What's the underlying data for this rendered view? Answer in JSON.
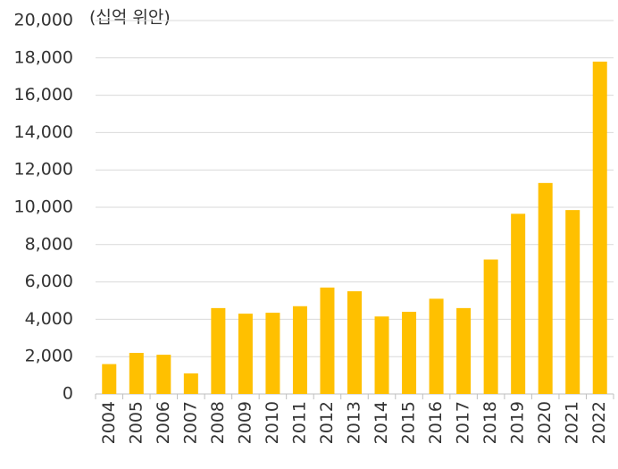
{
  "chart_data": {
    "type": "bar",
    "unit_label": "(십억 위안)",
    "categories": [
      "2004",
      "2005",
      "2006",
      "2007",
      "2008",
      "2009",
      "2010",
      "2011",
      "2012",
      "2013",
      "2014",
      "2015",
      "2016",
      "2017",
      "2018",
      "2019",
      "2020",
      "2021",
      "2022"
    ],
    "values": [
      1600,
      2200,
      2100,
      1100,
      4600,
      4300,
      4350,
      4700,
      5700,
      5500,
      4150,
      4400,
      5100,
      4600,
      7200,
      9650,
      11300,
      9850,
      17800
    ],
    "color": "#ffc000",
    "ylim": [
      0,
      20000
    ],
    "yticks": [
      0,
      {
        "value": 2000,
        "label": "2,000"
      },
      {
        "value": 4000,
        "label": "4,000"
      },
      {
        "value": 6000,
        "label": "6,000"
      },
      {
        "value": 8000,
        "label": "8,000"
      },
      {
        "value": 10000,
        "label": "10,000"
      },
      {
        "value": 12000,
        "label": "12,000"
      },
      {
        "value": 14000,
        "label": "14,000"
      },
      {
        "value": 16000,
        "label": "16,000"
      },
      {
        "value": 18000,
        "label": "18,000"
      },
      {
        "value": 20000,
        "label": "20,000"
      }
    ],
    "grid": true
  }
}
